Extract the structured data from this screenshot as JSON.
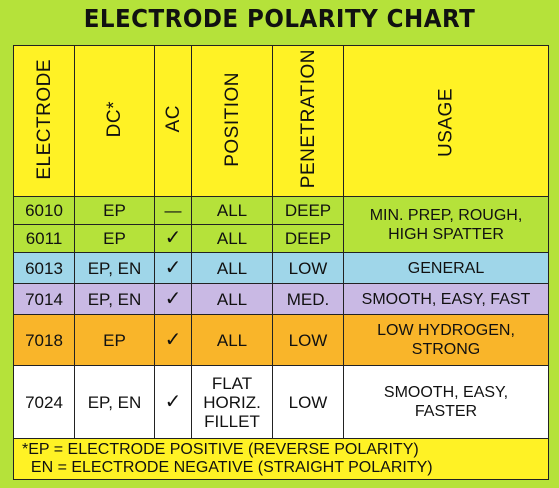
{
  "title": "ELECTRODE POLARITY CHART",
  "headers": {
    "electrode": "ELECTRODE",
    "dc": "DC*",
    "ac": "AC",
    "position": "POSITION",
    "penetration": "PENETRATION",
    "usage": "USAGE"
  },
  "rows": [
    {
      "electrode": "6010",
      "dc": "EP",
      "ac": "—",
      "position": "ALL",
      "penetration": "DEEP"
    },
    {
      "electrode": "6011",
      "dc": "EP",
      "ac": "✓",
      "position": "ALL",
      "penetration": "DEEP"
    },
    {
      "electrode": "6013",
      "dc": "EP, EN",
      "ac": "✓",
      "position": "ALL",
      "penetration": "LOW",
      "usage": "GENERAL"
    },
    {
      "electrode": "7014",
      "dc": "EP, EN",
      "ac": "✓",
      "position": "ALL",
      "penetration": "MED.",
      "usage": "SMOOTH, EASY, FAST"
    },
    {
      "electrode": "7018",
      "dc": "EP",
      "ac": "✓",
      "position": "ALL",
      "penetration": "LOW",
      "usage_lines": [
        "LOW HYDROGEN,",
        "STRONG"
      ]
    },
    {
      "electrode": "7024",
      "dc": "EP, EN",
      "ac": "✓",
      "position_lines": [
        "FLAT",
        "HORIZ.",
        "FILLET"
      ],
      "penetration": "LOW",
      "usage_lines": [
        "SMOOTH, EASY,",
        "FASTER"
      ]
    }
  ],
  "merged_usage_6010_6011": [
    "MIN. PREP, ROUGH,",
    "HIGH SPATTER"
  ],
  "footnote": [
    "*EP = ELECTRODE POSITIVE (REVERSE POLARITY)",
    "  EN = ELECTRODE NEGATIVE (STRAIGHT POLARITY)"
  ],
  "colors": {
    "background": "#b5e23a",
    "header": "#fff225",
    "row_6013": "#9fd6e9",
    "row_7014": "#c9b9e4",
    "row_7018": "#f9b52a",
    "row_7024": "#ffffff"
  }
}
